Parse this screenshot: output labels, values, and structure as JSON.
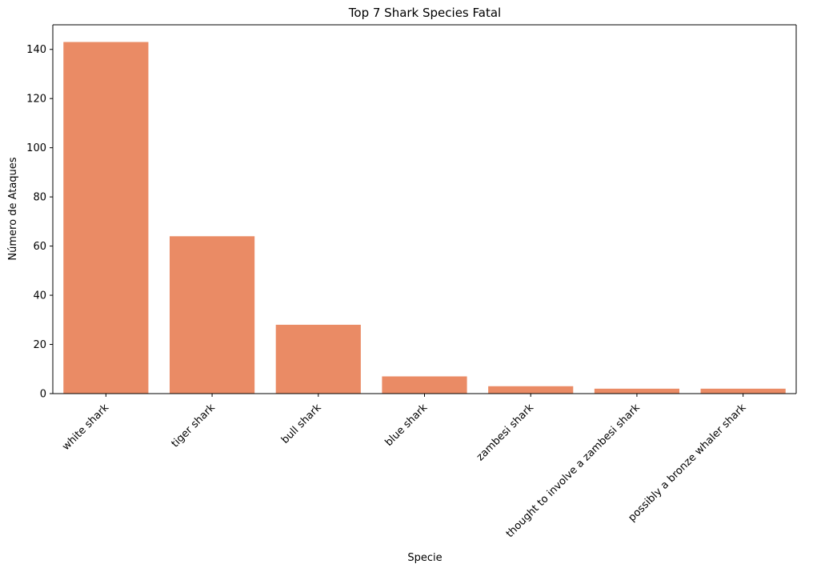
{
  "chart_data": {
    "type": "bar",
    "title": "Top 7 Shark Species Fatal",
    "xlabel": "Specie",
    "ylabel": "Número de Ataques",
    "categories": [
      "white shark",
      "tiger shark",
      "bull shark",
      "blue shark",
      "zambesi shark",
      "thought to involve a zambesi shark",
      "possibly a bronze whaler shark"
    ],
    "values": [
      143,
      64,
      28,
      7,
      3,
      2,
      2
    ],
    "ylim": [
      0,
      150
    ],
    "yticks": [
      "0",
      "20",
      "40",
      "60",
      "80",
      "100",
      "120",
      "140"
    ],
    "grid": false,
    "bar_color": "#ea8b65"
  }
}
